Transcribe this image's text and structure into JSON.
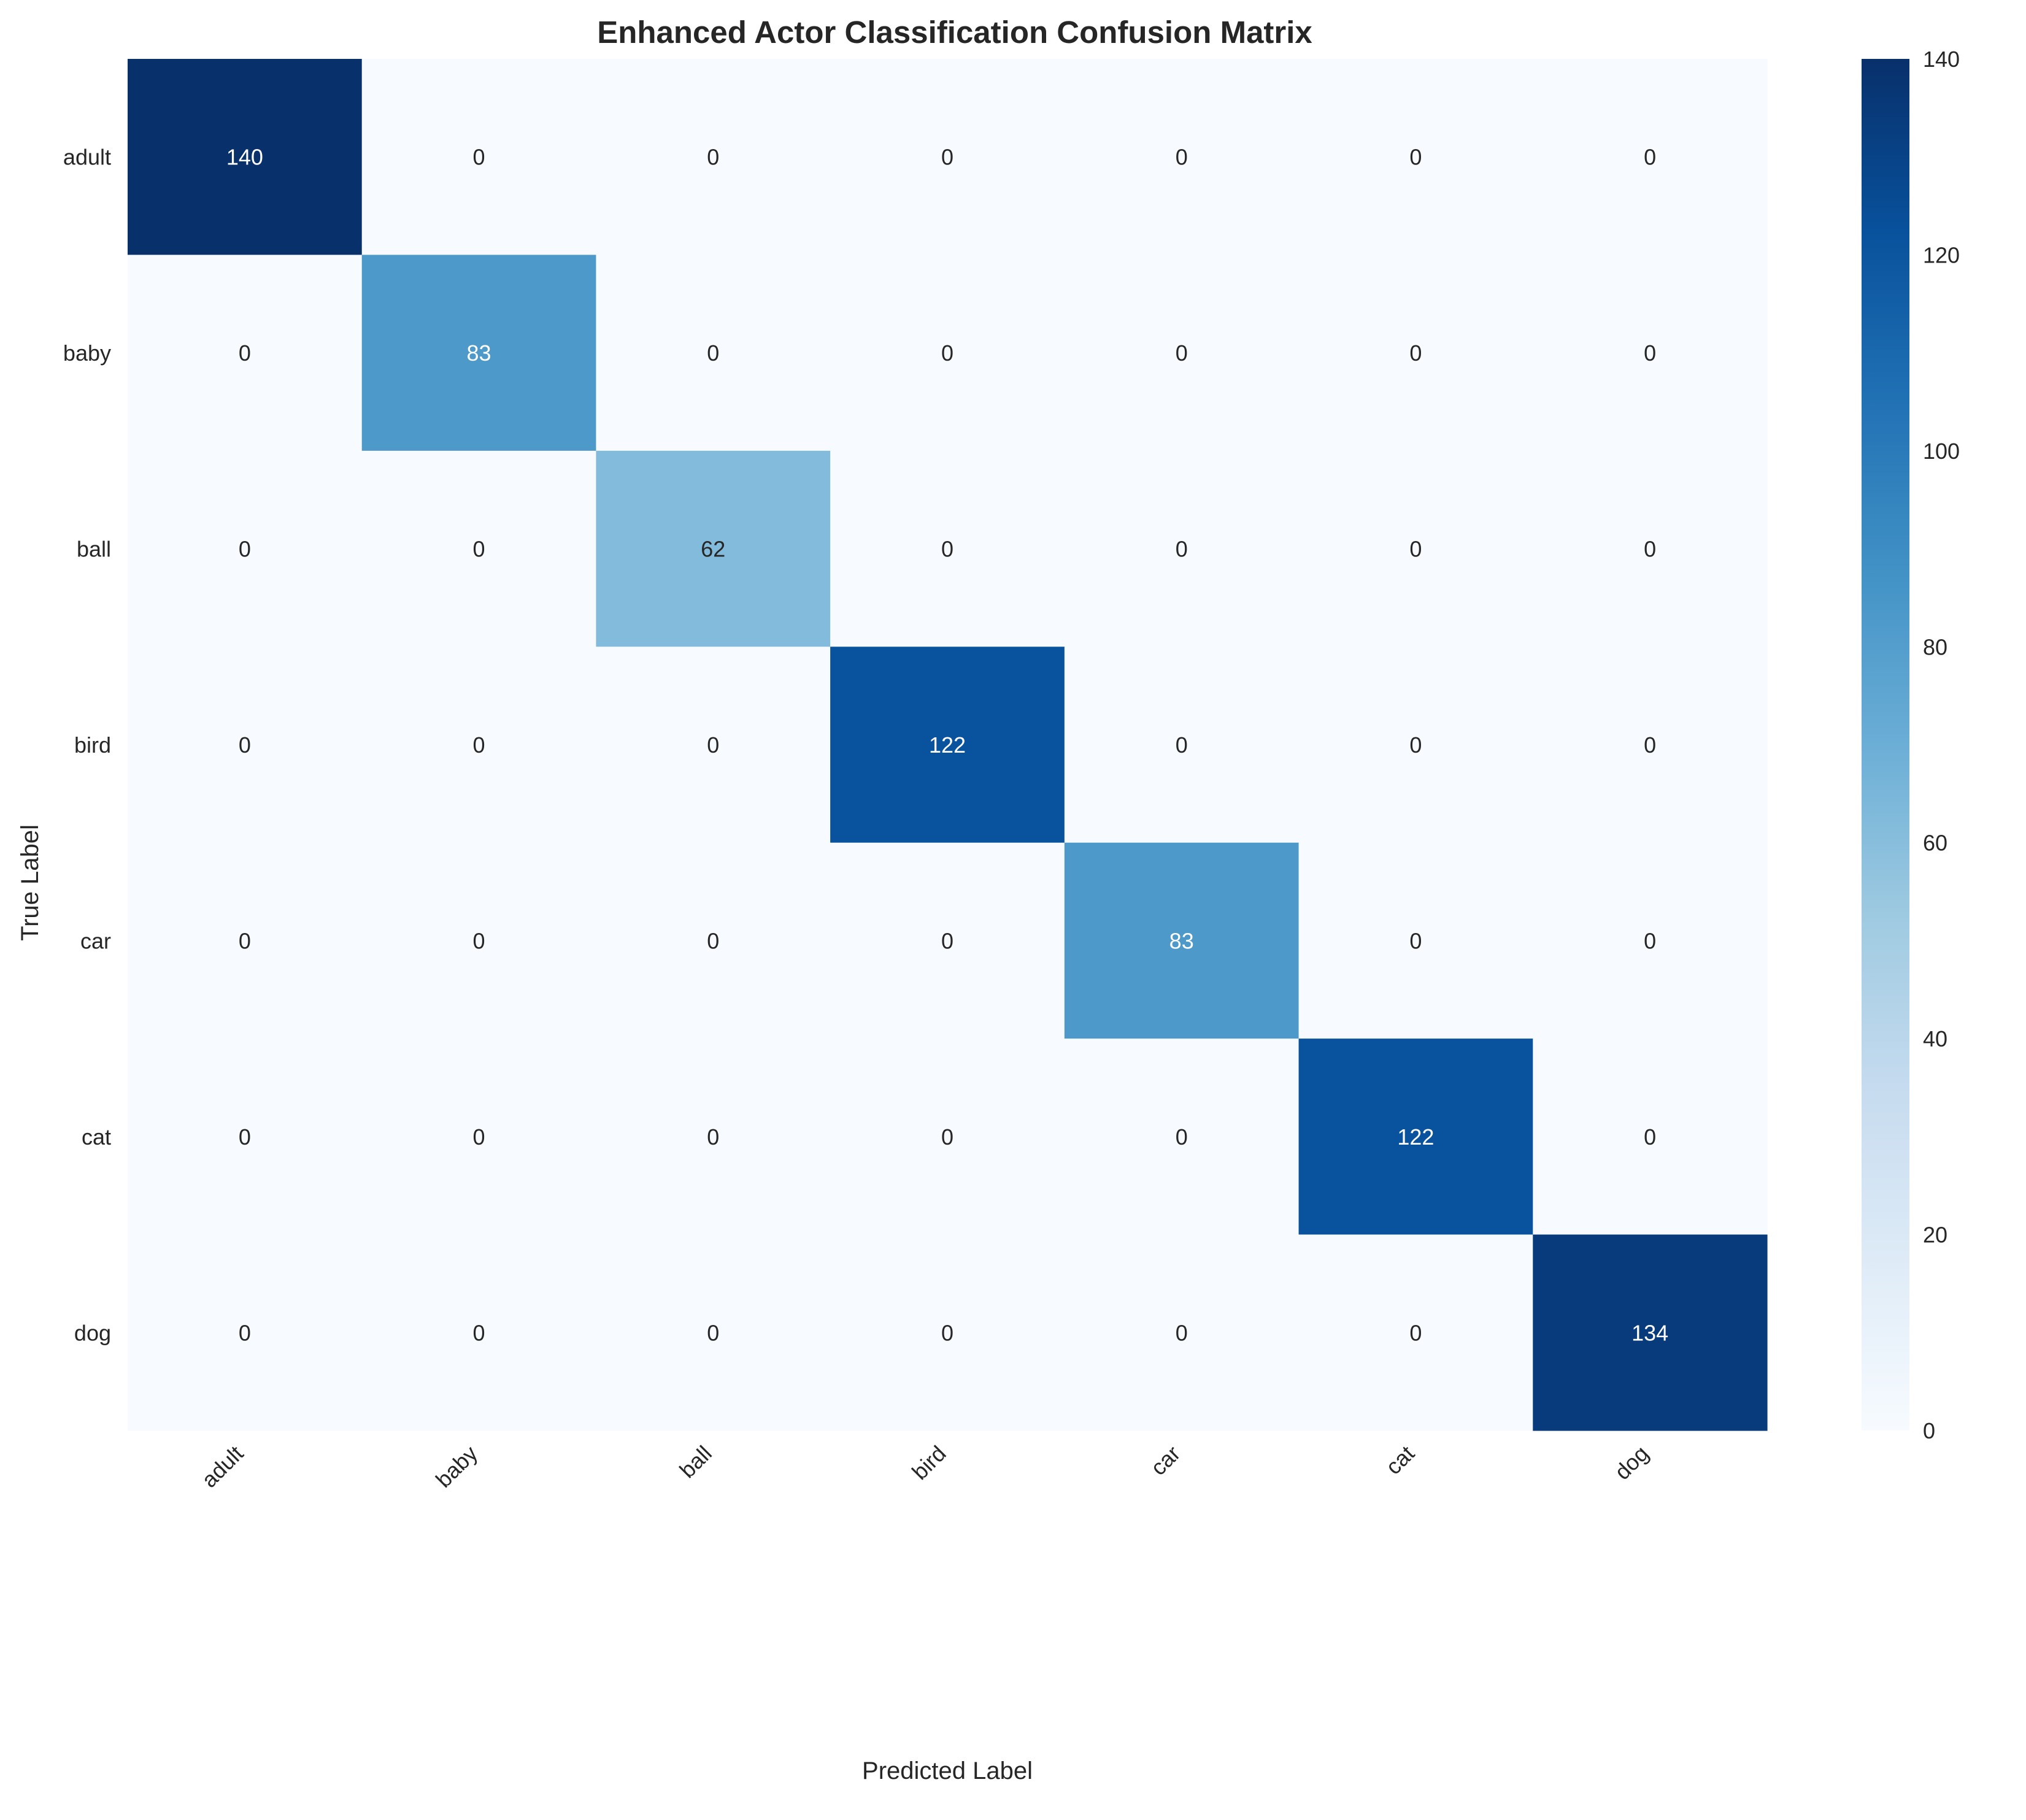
{
  "chart_data": {
    "type": "heatmap",
    "title": "Enhanced Actor Classification Confusion Matrix",
    "xlabel": "Predicted Label",
    "ylabel": "True Label",
    "x_categories": [
      "adult",
      "baby",
      "ball",
      "bird",
      "car",
      "cat",
      "dog"
    ],
    "y_categories": [
      "adult",
      "baby",
      "ball",
      "bird",
      "car",
      "cat",
      "dog"
    ],
    "values": [
      [
        140,
        0,
        0,
        0,
        0,
        0,
        0
      ],
      [
        0,
        83,
        0,
        0,
        0,
        0,
        0
      ],
      [
        0,
        0,
        62,
        0,
        0,
        0,
        0
      ],
      [
        0,
        0,
        0,
        122,
        0,
        0,
        0
      ],
      [
        0,
        0,
        0,
        0,
        83,
        0,
        0
      ],
      [
        0,
        0,
        0,
        0,
        0,
        122,
        0
      ],
      [
        0,
        0,
        0,
        0,
        0,
        0,
        134
      ]
    ],
    "colormap": "Blues",
    "value_range": [
      0,
      140
    ],
    "colorbar_ticks": [
      0,
      20,
      40,
      60,
      80,
      100,
      120,
      140
    ],
    "grid": false,
    "colors": {
      "low": "#f7fbff",
      "high": "#08306b",
      "text_dark": "#262626",
      "text_light": "#ffffff"
    }
  }
}
